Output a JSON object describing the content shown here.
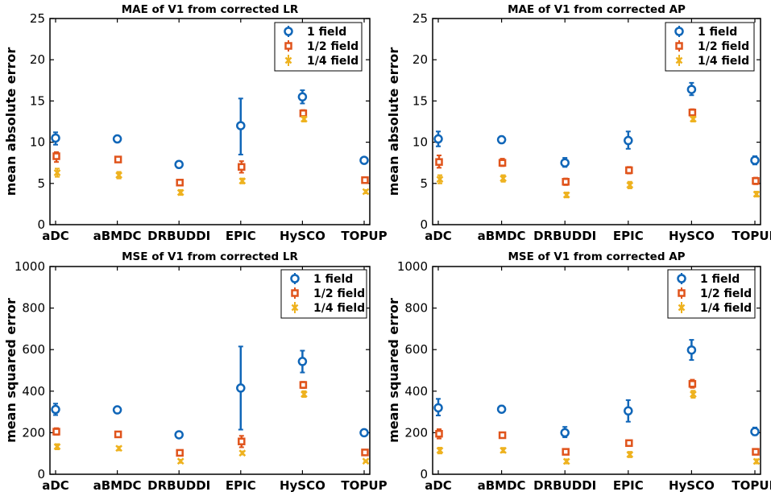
{
  "colors": {
    "one_field": "#1066b8",
    "half_field": "#e0541c",
    "quarter_field": "#eeb21f"
  },
  "chart_data": [
    {
      "type": "scatter",
      "title": "MAE of V1 from corrected LR",
      "xlabel": "",
      "ylabel": "mean absolute error",
      "ylim": [
        0,
        25
      ],
      "yticks": [
        "0",
        "5",
        "10",
        "15",
        "20",
        "25"
      ],
      "ytick_values": [
        0,
        5,
        10,
        15,
        20,
        25
      ],
      "categories": [
        "aDC",
        "aBMDC",
        "DRBUDDI",
        "EPIC",
        "HySCO",
        "TOPUP"
      ],
      "legend": {
        "placement": "top-right",
        "entries": [
          "1 field",
          "1/2 field",
          "1/4 field"
        ]
      },
      "series": [
        {
          "name": "1 field",
          "marker": "circle",
          "values": [
            10.5,
            10.4,
            7.3,
            12.0,
            15.5,
            7.8
          ],
          "lower": [
            9.7,
            10.1,
            6.9,
            8.5,
            14.7,
            7.6
          ],
          "upper": [
            11.2,
            10.7,
            7.7,
            15.3,
            16.3,
            8.1
          ]
        },
        {
          "name": "1/2 field",
          "marker": "square",
          "values": [
            8.3,
            7.9,
            5.1,
            7.0,
            13.5,
            5.4
          ],
          "lower": [
            7.6,
            7.6,
            4.8,
            6.3,
            13.1,
            5.2
          ],
          "upper": [
            8.8,
            8.2,
            5.4,
            7.7,
            13.9,
            5.6
          ]
        },
        {
          "name": "1/4 field",
          "marker": "x",
          "values": [
            6.3,
            6.0,
            3.9,
            5.3,
            12.8,
            4.0
          ],
          "lower": [
            5.8,
            5.6,
            3.6,
            5.0,
            12.5,
            3.8
          ],
          "upper": [
            6.8,
            6.4,
            4.2,
            5.6,
            13.1,
            4.2
          ]
        }
      ]
    },
    {
      "type": "scatter",
      "title": "MAE of V1 from corrected AP",
      "xlabel": "",
      "ylabel": "mean absolute error",
      "ylim": [
        0,
        25
      ],
      "yticks": [
        "0",
        "5",
        "10",
        "15",
        "20",
        "25"
      ],
      "ytick_values": [
        0,
        5,
        10,
        15,
        20,
        25
      ],
      "categories": [
        "aDC",
        "aBMDC",
        "DRBUDDI",
        "EPIC",
        "HySCO",
        "TOPUP"
      ],
      "legend": {
        "placement": "top-right",
        "entries": [
          "1 field",
          "1/2 field",
          "1/4 field"
        ]
      },
      "series": [
        {
          "name": "1 field",
          "marker": "circle",
          "values": [
            10.4,
            10.3,
            7.5,
            10.2,
            16.4,
            7.8
          ],
          "lower": [
            9.5,
            9.9,
            7.0,
            9.2,
            15.7,
            7.3
          ],
          "upper": [
            11.3,
            10.7,
            8.1,
            11.3,
            17.2,
            8.3
          ]
        },
        {
          "name": "1/2 field",
          "marker": "square",
          "values": [
            7.6,
            7.5,
            5.2,
            6.6,
            13.6,
            5.3
          ],
          "lower": [
            6.9,
            7.1,
            4.8,
            6.2,
            13.2,
            4.9
          ],
          "upper": [
            8.4,
            8.0,
            5.6,
            7.0,
            14.0,
            5.7
          ]
        },
        {
          "name": "1/4 field",
          "marker": "x",
          "values": [
            5.5,
            5.6,
            3.6,
            4.8,
            12.8,
            3.7
          ],
          "lower": [
            5.0,
            5.2,
            3.3,
            4.4,
            12.5,
            3.4
          ],
          "upper": [
            6.0,
            6.0,
            3.9,
            5.2,
            13.1,
            4.0
          ]
        }
      ]
    },
    {
      "type": "scatter",
      "title": "MSE of V1 from corrected LR",
      "xlabel": "",
      "ylabel": "mean squared error",
      "ylim": [
        0,
        1000
      ],
      "yticks": [
        "0",
        "200",
        "400",
        "600",
        "800",
        "1000"
      ],
      "ytick_values": [
        0,
        200,
        400,
        600,
        800,
        1000
      ],
      "categories": [
        "aDC",
        "aBMDC",
        "DRBUDDI",
        "EPIC",
        "HySCO",
        "TOPUP"
      ],
      "legend": {
        "placement": "top-right",
        "entries": [
          "1 field",
          "1/2 field",
          "1/4 field"
        ]
      },
      "series": [
        {
          "name": "1 field",
          "marker": "circle",
          "values": [
            312,
            310,
            190,
            415,
            543,
            200
          ],
          "lower": [
            285,
            300,
            180,
            215,
            490,
            192
          ],
          "upper": [
            340,
            320,
            200,
            615,
            595,
            208
          ]
        },
        {
          "name": "1/2 field",
          "marker": "square",
          "values": [
            205,
            192,
            103,
            158,
            430,
            105
          ],
          "lower": [
            190,
            185,
            97,
            130,
            415,
            100
          ],
          "upper": [
            222,
            200,
            110,
            185,
            445,
            110
          ]
        },
        {
          "name": "1/4 field",
          "marker": "x",
          "values": [
            133,
            125,
            63,
            102,
            385,
            63
          ],
          "lower": [
            120,
            115,
            55,
            95,
            372,
            58
          ],
          "upper": [
            145,
            133,
            70,
            110,
            400,
            68
          ]
        }
      ]
    },
    {
      "type": "scatter",
      "title": "MSE of V1 from corrected AP",
      "xlabel": "",
      "ylabel": "mean squared error",
      "ylim": [
        0,
        1000
      ],
      "yticks": [
        "0",
        "200",
        "400",
        "600",
        "800",
        "1000"
      ],
      "ytick_values": [
        0,
        200,
        400,
        600,
        800,
        1000
      ],
      "categories": [
        "aDC",
        "aBMDC",
        "DRBUDDI",
        "EPIC",
        "HySCO",
        "TOPUP"
      ],
      "legend": {
        "placement": "top-right",
        "entries": [
          "1 field",
          "1/2 field",
          "1/4 field"
        ]
      },
      "series": [
        {
          "name": "1 field",
          "marker": "circle",
          "values": [
            320,
            313,
            200,
            305,
            598,
            205
          ],
          "lower": [
            283,
            297,
            178,
            253,
            550,
            188
          ],
          "upper": [
            363,
            330,
            228,
            357,
            647,
            225
          ]
        },
        {
          "name": "1/2 field",
          "marker": "square",
          "values": [
            195,
            188,
            108,
            150,
            435,
            108
          ],
          "lower": [
            172,
            176,
            98,
            138,
            416,
            98
          ],
          "upper": [
            217,
            200,
            120,
            163,
            455,
            120
          ]
        },
        {
          "name": "1/4 field",
          "marker": "x",
          "values": [
            115,
            115,
            62,
            95,
            385,
            62
          ],
          "lower": [
            100,
            105,
            52,
            82,
            368,
            52
          ],
          "upper": [
            128,
            127,
            72,
            108,
            402,
            72
          ]
        }
      ]
    }
  ]
}
